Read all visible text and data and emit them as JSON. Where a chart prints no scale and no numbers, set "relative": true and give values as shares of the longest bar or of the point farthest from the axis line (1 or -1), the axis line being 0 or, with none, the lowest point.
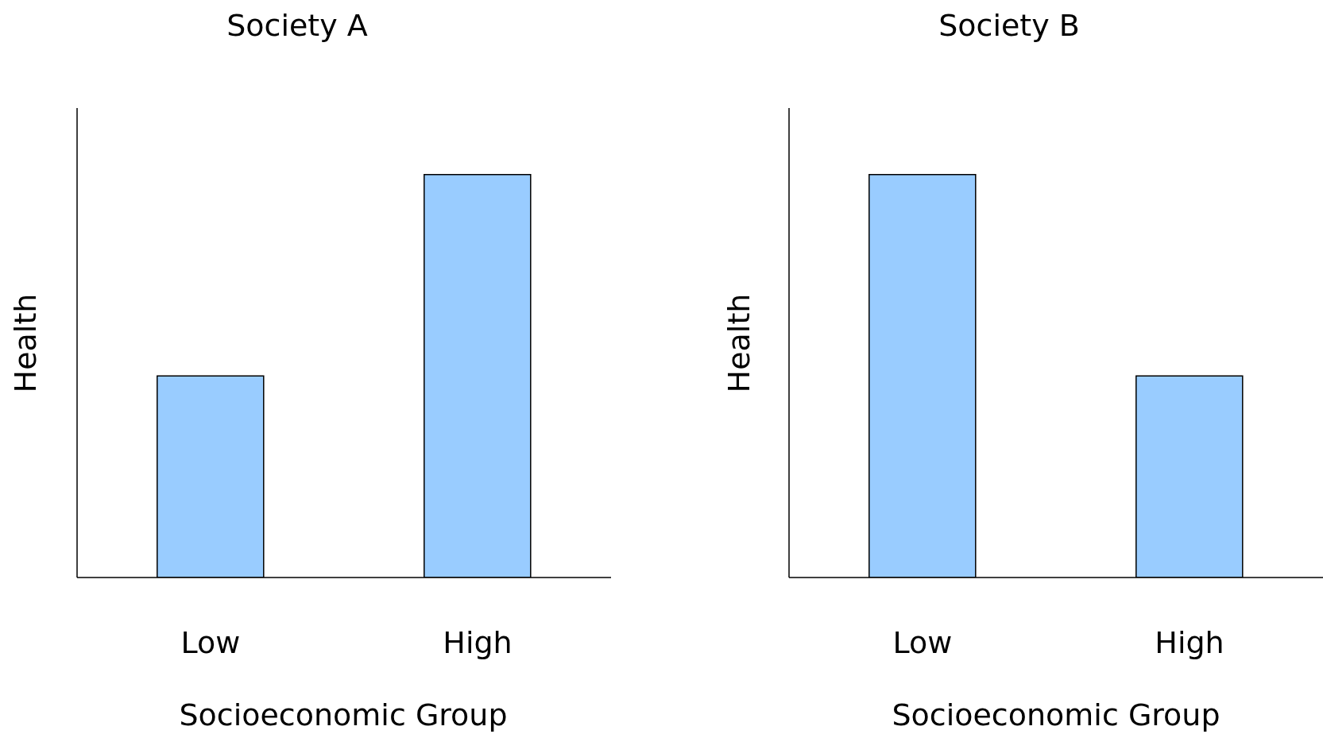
{
  "chart_data": [
    {
      "type": "bar",
      "title": "Society A",
      "xlabel": "Socioeconomic Group",
      "ylabel": "Health",
      "categories": [
        "Low",
        "High"
      ],
      "values": [
        0.5,
        1
      ],
      "color": "#99ccff",
      "relative": true
    },
    {
      "type": "bar",
      "title": "Society B",
      "xlabel": "Socioeconomic Group",
      "ylabel": "Health",
      "categories": [
        "Low",
        "High"
      ],
      "values": [
        1,
        0.5
      ],
      "color": "#99ccff",
      "relative": true
    }
  ]
}
